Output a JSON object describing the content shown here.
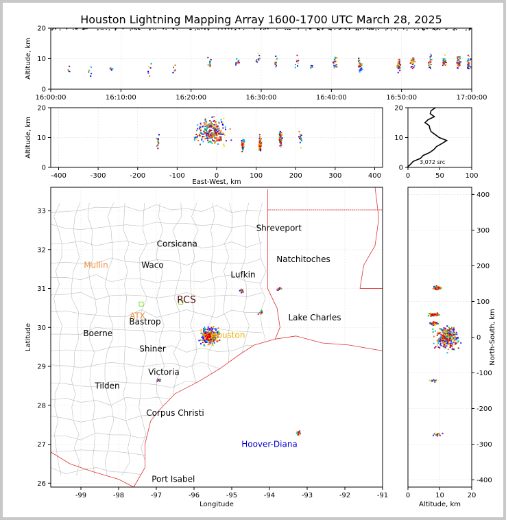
{
  "chart_data": {
    "type": "scatter",
    "title": "Houston Lightning Mapping Array 1600-1700 UTC March 28, 2025",
    "panels": {
      "time_altitude": {
        "xlim": [
          "16:00:00",
          "17:00:00"
        ],
        "xticks": [
          "16:00:00",
          "16:10:00",
          "16:20:00",
          "16:30:00",
          "16:40:00",
          "16:50:00",
          "17:00:00"
        ],
        "ylim": [
          0,
          20
        ],
        "yticks": [
          0,
          10,
          20
        ],
        "ylabel": "Altitude, km",
        "clusters": [
          {
            "t_min": 2.5,
            "alt": 7,
            "n": 4
          },
          {
            "t_min": 5.5,
            "alt": 6,
            "n": 5
          },
          {
            "t_min": 8.5,
            "alt": 6,
            "n": 5
          },
          {
            "t_min": 14,
            "alt": 7,
            "n": 6
          },
          {
            "t_min": 17.5,
            "alt": 7,
            "n": 6
          },
          {
            "t_min": 22.5,
            "alt": 9,
            "n": 10
          },
          {
            "t_min": 26.5,
            "alt": 9,
            "n": 10
          },
          {
            "t_min": 29.5,
            "alt": 10,
            "n": 8
          },
          {
            "t_min": 32,
            "alt": 9,
            "n": 10
          },
          {
            "t_min": 35,
            "alt": 9,
            "n": 8
          },
          {
            "t_min": 37,
            "alt": 7,
            "n": 5
          },
          {
            "t_min": 40.5,
            "alt": 9,
            "n": 20
          },
          {
            "t_min": 44,
            "alt": 8,
            "n": 25
          },
          {
            "t_min": 49.5,
            "alt": 8,
            "n": 30
          },
          {
            "t_min": 51.5,
            "alt": 9,
            "n": 35
          },
          {
            "t_min": 54,
            "alt": 9,
            "n": 20
          },
          {
            "t_min": 56,
            "alt": 9,
            "n": 30
          },
          {
            "t_min": 58,
            "alt": 9,
            "n": 40
          },
          {
            "t_min": 59.5,
            "alt": 9,
            "n": 25
          }
        ]
      },
      "east_west_altitude": {
        "xlim": [
          -420,
          420
        ],
        "xticks": [
          -400,
          -300,
          -200,
          -100,
          0,
          100,
          200,
          300,
          400
        ],
        "xlabel": "East-West, km",
        "ylim": [
          0,
          20
        ],
        "yticks": [
          0,
          10,
          20
        ],
        "ylabel": "Altitude, km",
        "clusters": [
          {
            "x": -150,
            "alt": 9,
            "n": 12
          },
          {
            "x": -15,
            "alt": 12,
            "n": 280
          },
          {
            "x": 65,
            "alt": 8,
            "n": 40
          },
          {
            "x": 108,
            "alt": 8,
            "n": 70
          },
          {
            "x": 160,
            "alt": 10,
            "n": 60
          },
          {
            "x": 210,
            "alt": 10,
            "n": 15
          }
        ]
      },
      "altitude_histogram": {
        "xlim": [
          0,
          100
        ],
        "xticks": [
          0,
          50,
          100
        ],
        "ylim": [
          0,
          20
        ],
        "yticks": [
          0,
          10,
          20
        ],
        "label": "3,072 src",
        "profile": [
          [
            0,
            0
          ],
          [
            5,
            1
          ],
          [
            10,
            2
          ],
          [
            20,
            3
          ],
          [
            25,
            4
          ],
          [
            35,
            5
          ],
          [
            40,
            6
          ],
          [
            45,
            7
          ],
          [
            55,
            8
          ],
          [
            62,
            9
          ],
          [
            50,
            10
          ],
          [
            42,
            11
          ],
          [
            38,
            12
          ],
          [
            35,
            13
          ],
          [
            32,
            14
          ],
          [
            28,
            15
          ],
          [
            30,
            16
          ],
          [
            40,
            17
          ],
          [
            35,
            18
          ],
          [
            38,
            19
          ],
          [
            42,
            20
          ]
        ]
      },
      "plan_view": {
        "xlim": [
          -99.8,
          -91
        ],
        "xticks": [
          -99,
          -98,
          -97,
          -96,
          -95,
          -94,
          -93,
          -92,
          -91
        ],
        "xlabel": "Longitude",
        "ylim": [
          25.9,
          33.6
        ],
        "yticks": [
          26,
          27,
          28,
          29,
          30,
          31,
          32,
          33
        ],
        "ylabel": "Latitude",
        "places": [
          {
            "name": "Shreveport",
            "lon": -93.75,
            "lat": 32.55,
            "color": "#000000"
          },
          {
            "name": "Corsicana",
            "lon": -96.45,
            "lat": 32.15,
            "color": "#000000"
          },
          {
            "name": "Natchitoches",
            "lon": -93.1,
            "lat": 31.75,
            "color": "#000000"
          },
          {
            "name": "Mullin",
            "lon": -98.6,
            "lat": 31.6,
            "color": "#f08c3c"
          },
          {
            "name": "Waco",
            "lon": -97.1,
            "lat": 31.6,
            "color": "#000000"
          },
          {
            "name": "Lufkin",
            "lon": -94.7,
            "lat": 31.35,
            "color": "#000000"
          },
          {
            "name": "RCS",
            "lon": -96.2,
            "lat": 30.7,
            "color": "#551111"
          },
          {
            "name": "ATX",
            "lon": -97.5,
            "lat": 30.3,
            "color": "#f08c3c"
          },
          {
            "name": "Bastrop",
            "lon": -97.3,
            "lat": 30.15,
            "color": "#000000"
          },
          {
            "name": "Lake Charles",
            "lon": -92.8,
            "lat": 30.25,
            "color": "#000000"
          },
          {
            "name": "Boerne",
            "lon": -98.55,
            "lat": 29.85,
            "color": "#000000"
          },
          {
            "name": "Houston",
            "lon": -95.1,
            "lat": 29.8,
            "color": "#e8b000"
          },
          {
            "name": "Shiner",
            "lon": -97.1,
            "lat": 29.45,
            "color": "#000000"
          },
          {
            "name": "Victoria",
            "lon": -96.8,
            "lat": 28.85,
            "color": "#000000"
          },
          {
            "name": "Tilden",
            "lon": -98.3,
            "lat": 28.5,
            "color": "#000000"
          },
          {
            "name": "Corpus Christi",
            "lon": -96.5,
            "lat": 27.8,
            "color": "#000000"
          },
          {
            "name": "Hoover-Diana",
            "lon": -94.0,
            "lat": 27.0,
            "color": "#0000cc"
          },
          {
            "name": "Port Isabel",
            "lon": -96.55,
            "lat": 26.1,
            "color": "#000000"
          }
        ],
        "clusters": [
          {
            "lon": -95.6,
            "lat": 29.8,
            "n": 280
          },
          {
            "lon": -94.75,
            "lat": 30.95,
            "n": 15
          },
          {
            "lon": -94.25,
            "lat": 30.4,
            "n": 15
          },
          {
            "lon": -93.75,
            "lat": 31.0,
            "n": 12
          },
          {
            "lon": -96.95,
            "lat": 28.65,
            "n": 10
          },
          {
            "lon": -93.25,
            "lat": 27.3,
            "n": 20
          }
        ]
      },
      "north_south_altitude": {
        "xlim": [
          0,
          20
        ],
        "xticks": [
          0,
          10,
          20
        ],
        "xlabel": "Altitude, km",
        "ylim": [
          -420,
          420
        ],
        "yticks": [
          -400,
          -300,
          -200,
          -100,
          0,
          100,
          200,
          300,
          400
        ],
        "ylabel": "North-South, km",
        "clusters": [
          {
            "alt": 9,
            "y": 140,
            "n": 60
          },
          {
            "alt": 8,
            "y": 65,
            "n": 80
          },
          {
            "alt": 8,
            "y": 40,
            "n": 40
          },
          {
            "alt": 12,
            "y": 0,
            "n": 300
          },
          {
            "alt": 8,
            "y": -120,
            "n": 10
          },
          {
            "alt": 9,
            "y": -270,
            "n": 15
          }
        ]
      }
    }
  }
}
